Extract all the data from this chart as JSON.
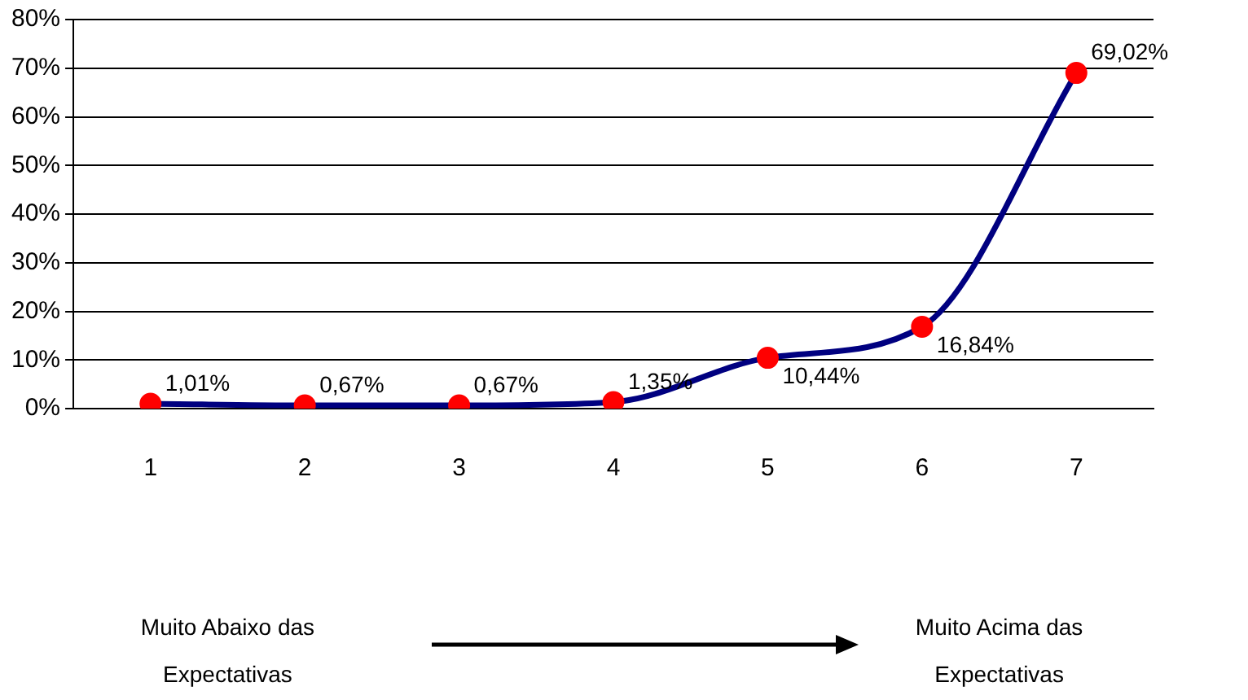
{
  "chart_data": {
    "type": "line",
    "categories": [
      "1",
      "2",
      "3",
      "4",
      "5",
      "6",
      "7"
    ],
    "series": [
      {
        "color": "#000080",
        "colors": [
          "#ff0000",
          "#ff0000",
          "#ff0000",
          "#ff0000",
          "#ff0000",
          "#ff0000",
          "#ff0000"
        ],
        "values": [
          1.01,
          0.67,
          0.67,
          1.35,
          10.44,
          16.84,
          69.02
        ],
        "value_labels": [
          "1,01%",
          "0,67%",
          "0,67%",
          "1,35%",
          "10,44%",
          "16,84%",
          "69,02%"
        ]
      }
    ],
    "ylim": [
      0,
      80
    ],
    "yticks": [
      {
        "value": 0,
        "label": "0%"
      },
      {
        "value": 10,
        "label": "10%"
      },
      {
        "value": 20,
        "label": "20%"
      },
      {
        "value": 30,
        "label": "30%"
      },
      {
        "value": 40,
        "label": "40%"
      },
      {
        "value": 50,
        "label": "50%"
      },
      {
        "value": 60,
        "label": "60%"
      },
      {
        "value": 70,
        "label": "70%"
      },
      {
        "value": 80,
        "label": "80%"
      }
    ],
    "grid": "y",
    "legend": false,
    "marker": "circle",
    "line_style": "solid",
    "annotations": [
      "Muito Abaixo das Expectativas",
      "Muito Acima das Expectativas"
    ]
  }
}
